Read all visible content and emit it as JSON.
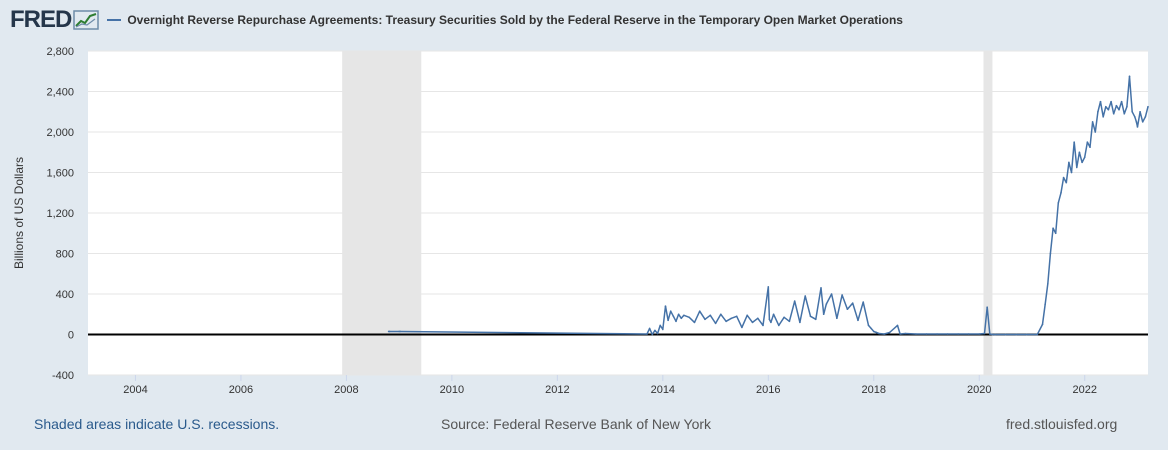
{
  "header": {
    "logo": "FRED",
    "series_title": "Overnight Reverse Repurchase Agreements: Treasury Securities Sold by the Federal Reserve in the Temporary Open Market Operations"
  },
  "footer": {
    "recession_note": "Shaded areas indicate U.S. recessions.",
    "source": "Source: Federal Reserve Bank of New York",
    "site": "fred.stlouisfed.org"
  },
  "colors": {
    "line": "#4572a7",
    "recession": "#e6e6e6",
    "zero_line": "#000000"
  },
  "chart_data": {
    "type": "line",
    "title": "Overnight Reverse Repurchase Agreements: Treasury Securities Sold by the Federal Reserve in the Temporary Open Market Operations",
    "xlabel": "",
    "ylabel": "Billions of US Dollars",
    "xlim": [
      2003.1,
      2023.2
    ],
    "ylim": [
      -400,
      2800
    ],
    "yticks": [
      -400,
      0,
      400,
      800,
      1200,
      1600,
      2000,
      2400,
      2800
    ],
    "ytick_labels": [
      "-400",
      "0",
      "400",
      "800",
      "1,200",
      "1,600",
      "2,000",
      "2,400",
      "2,800"
    ],
    "xticks": [
      2004,
      2006,
      2008,
      2010,
      2012,
      2014,
      2016,
      2018,
      2020,
      2022
    ],
    "xtick_labels": [
      "2004",
      "2006",
      "2008",
      "2010",
      "2012",
      "2014",
      "2016",
      "2018",
      "2020",
      "2022"
    ],
    "recessions": [
      [
        2007.92,
        2009.42
      ],
      [
        2020.08,
        2020.25
      ]
    ],
    "grid": true,
    "series": [
      {
        "name": "Overnight Reverse Repurchase Agreements: Treasury Securities Sold by the Federal Reserve in the Temporary Open Market Operations",
        "x": [
          2008.8,
          2008.82,
          2009.0,
          2009.02,
          2013.7,
          2013.75,
          2013.8,
          2013.85,
          2013.9,
          2013.95,
          2014.0,
          2014.05,
          2014.1,
          2014.15,
          2014.2,
          2014.25,
          2014.3,
          2014.35,
          2014.4,
          2014.5,
          2014.6,
          2014.7,
          2014.8,
          2014.9,
          2015.0,
          2015.1,
          2015.2,
          2015.3,
          2015.4,
          2015.5,
          2015.6,
          2015.7,
          2015.8,
          2015.9,
          2016.0,
          2016.02,
          2016.05,
          2016.1,
          2016.2,
          2016.3,
          2016.4,
          2016.5,
          2016.6,
          2016.7,
          2016.8,
          2016.9,
          2017.0,
          2017.05,
          2017.1,
          2017.2,
          2017.3,
          2017.4,
          2017.5,
          2017.6,
          2017.7,
          2017.8,
          2017.9,
          2017.95,
          2018.0,
          2018.05,
          2018.1,
          2018.2,
          2018.3,
          2018.45,
          2018.5,
          2018.6,
          2018.8,
          2019.0,
          2019.2,
          2019.4,
          2019.6,
          2019.8,
          2020.0,
          2020.1,
          2020.15,
          2020.2,
          2020.25,
          2020.3,
          2020.5,
          2020.7,
          2020.9,
          2021.1,
          2021.2,
          2021.25,
          2021.3,
          2021.35,
          2021.4,
          2021.45,
          2021.5,
          2021.55,
          2021.6,
          2021.65,
          2021.7,
          2021.75,
          2021.8,
          2021.85,
          2021.9,
          2021.95,
          2022.0,
          2022.05,
          2022.1,
          2022.15,
          2022.2,
          2022.25,
          2022.3,
          2022.35,
          2022.4,
          2022.45,
          2022.5,
          2022.55,
          2022.6,
          2022.65,
          2022.7,
          2022.75,
          2022.8,
          2022.85,
          2022.9,
          2022.95,
          2022.98,
          2023.0,
          2023.05,
          2023.1,
          2023.15,
          2023.2
        ],
        "y": [
          30,
          30,
          30,
          30,
          5,
          60,
          0,
          40,
          10,
          90,
          50,
          280,
          140,
          230,
          180,
          130,
          200,
          160,
          190,
          170,
          120,
          230,
          150,
          190,
          110,
          200,
          130,
          160,
          180,
          70,
          190,
          120,
          160,
          90,
          470,
          150,
          120,
          200,
          90,
          170,
          130,
          330,
          120,
          380,
          180,
          150,
          460,
          200,
          300,
          400,
          160,
          390,
          250,
          310,
          140,
          320,
          90,
          60,
          30,
          20,
          10,
          5,
          20,
          90,
          5,
          10,
          5,
          5,
          5,
          5,
          5,
          5,
          5,
          10,
          270,
          5,
          0,
          0,
          0,
          0,
          0,
          0,
          100,
          300,
          500,
          800,
          1050,
          1000,
          1300,
          1400,
          1550,
          1500,
          1700,
          1600,
          1900,
          1650,
          1800,
          1700,
          1750,
          1900,
          1850,
          2100,
          2000,
          2200,
          2300,
          2150,
          2250,
          2220,
          2300,
          2180,
          2260,
          2220,
          2300,
          2180,
          2250,
          2550,
          2200,
          2150,
          2100,
          2050,
          2200,
          2100,
          2150,
          2250
        ]
      }
    ]
  }
}
